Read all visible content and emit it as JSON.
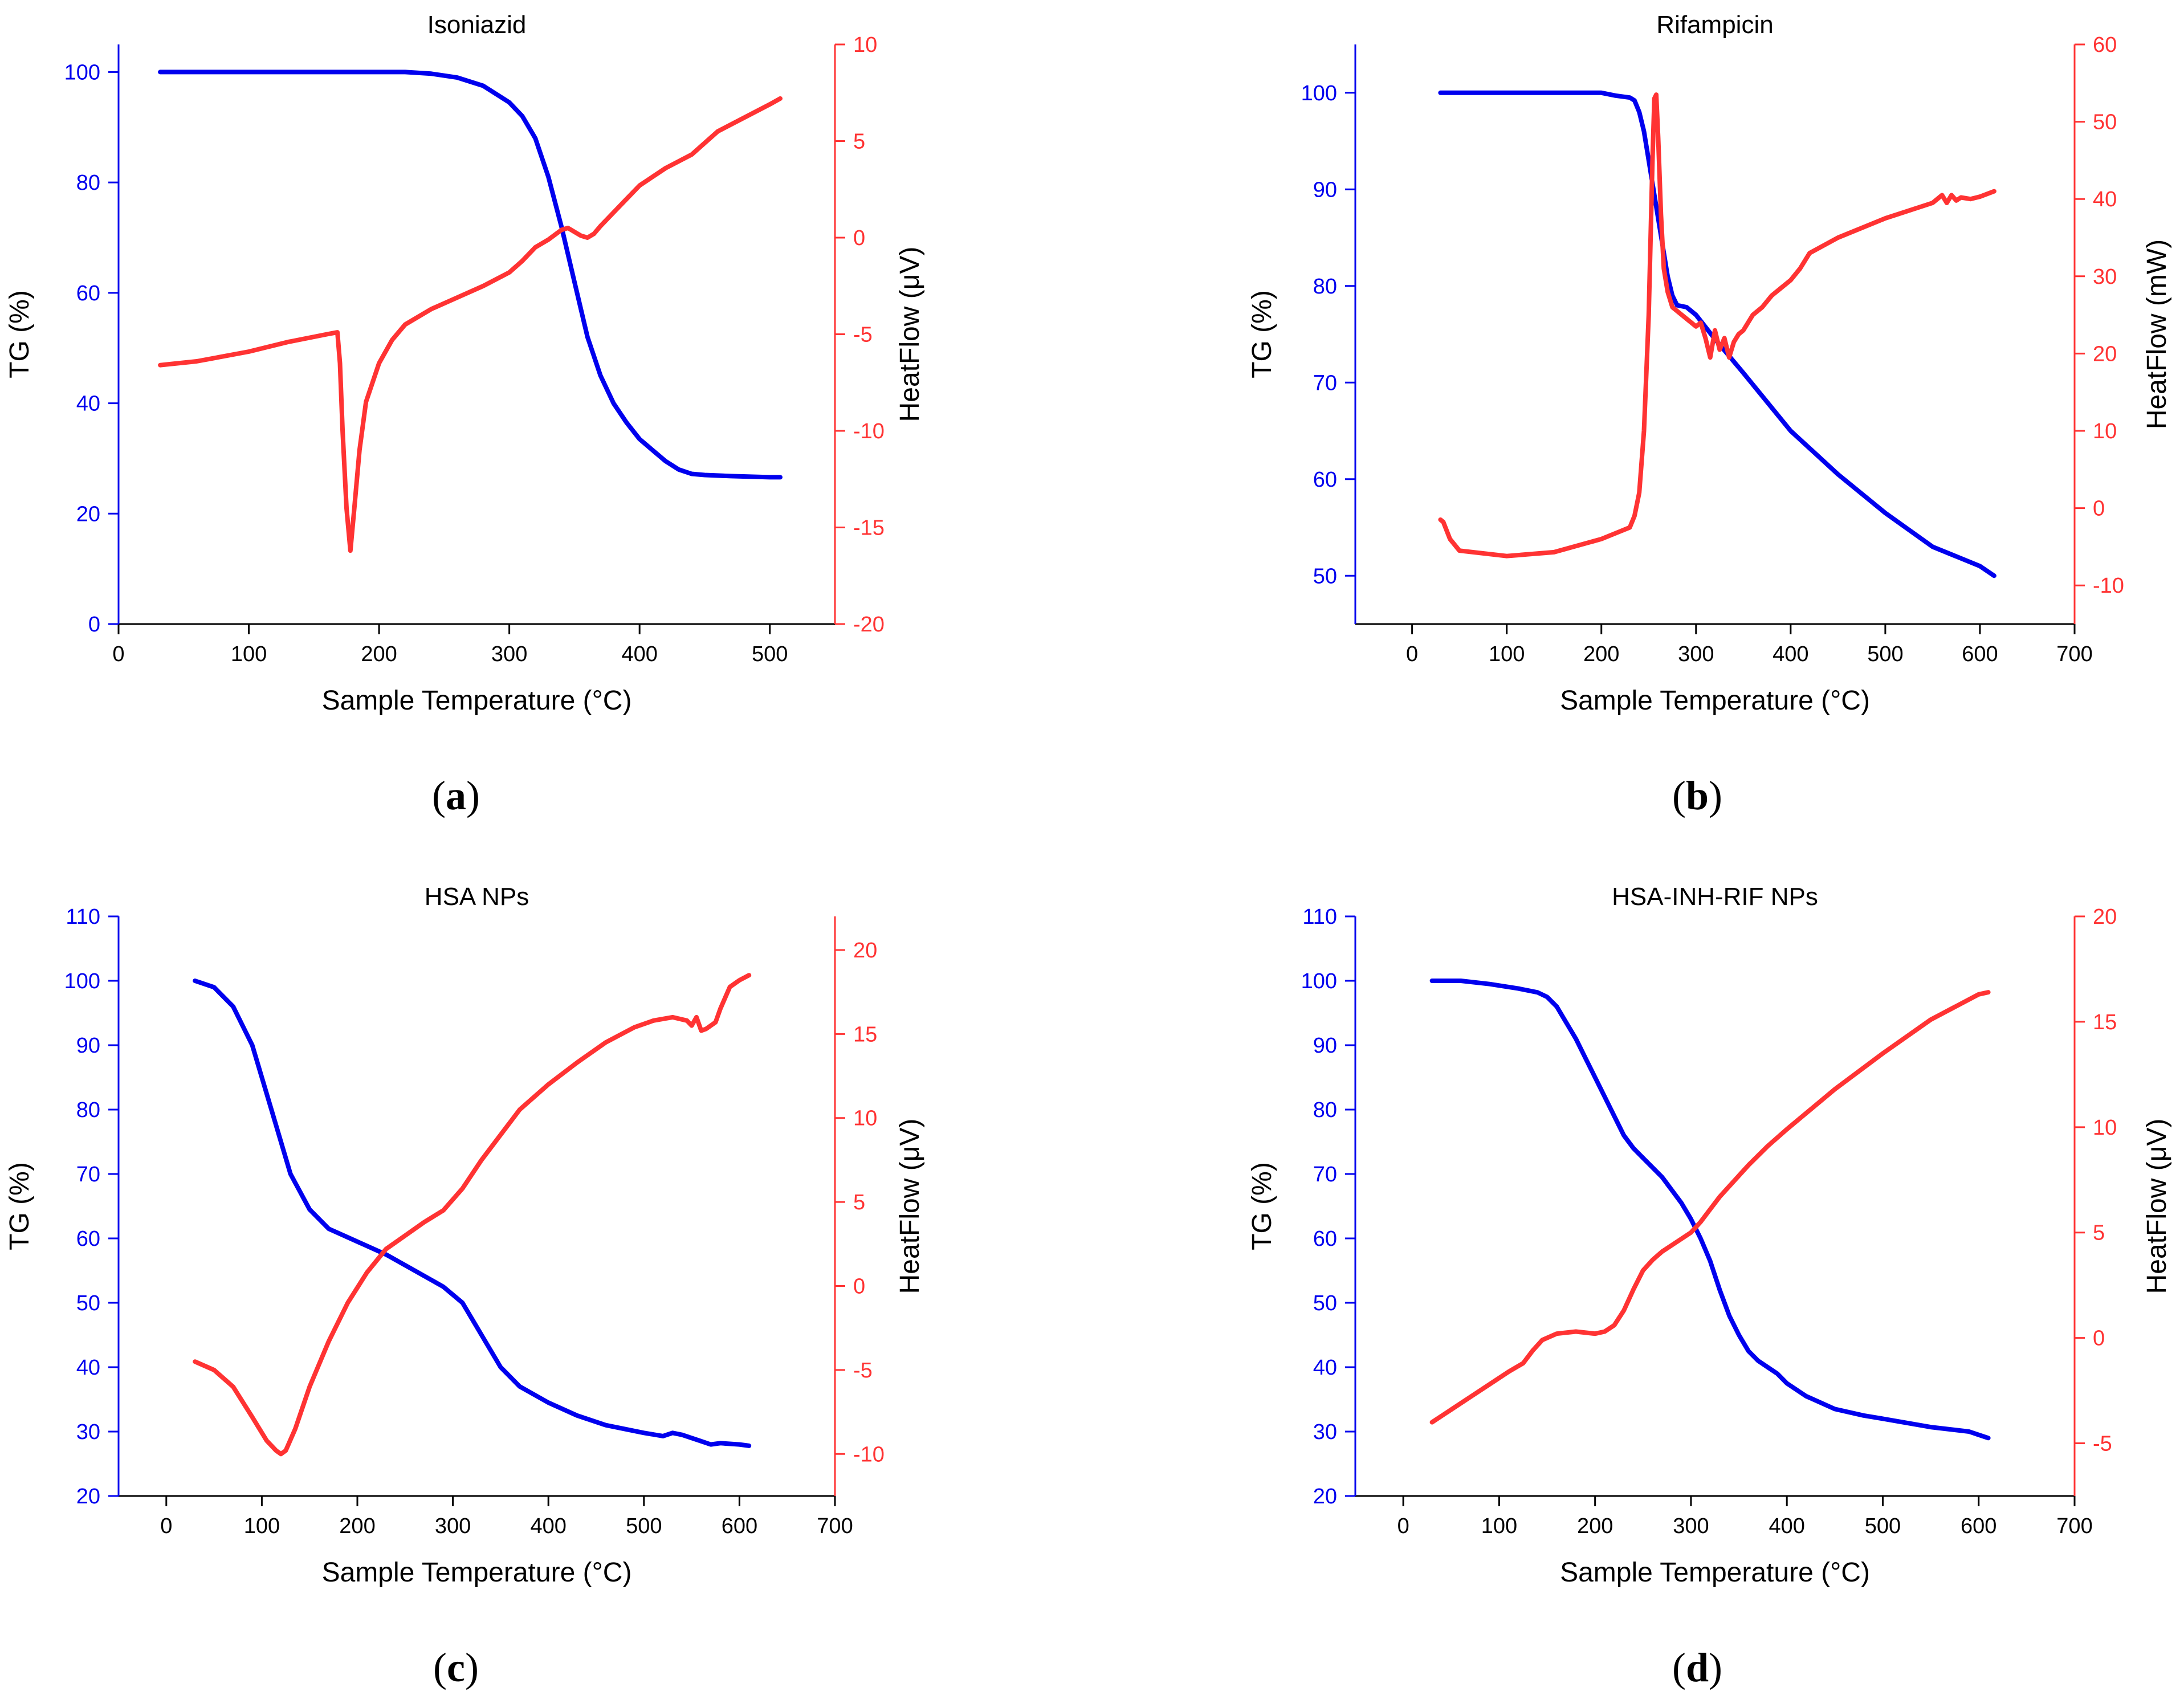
{
  "colors": {
    "tg": "#0000ee",
    "heatflow": "#ff3333",
    "axis": "#000000"
  },
  "chart_data": [
    {
      "type": "line",
      "title": "Isoniazid",
      "panel_label": "a",
      "xlabel": "Sample Temperature (°C)",
      "ylabel": "TG (%)",
      "y2label": "HeatFlow (μV)",
      "xlim": [
        0,
        550
      ],
      "xticks": [
        0,
        100,
        200,
        300,
        400,
        500
      ],
      "ylim": [
        0,
        105
      ],
      "yticks": [
        0,
        20,
        40,
        60,
        80,
        100
      ],
      "y2lim": [
        -20,
        10
      ],
      "y2ticks": [
        -20,
        -15,
        -10,
        -5,
        0,
        5,
        10
      ],
      "series": [
        {
          "name": "TG",
          "axis": "left",
          "color": "#0000ee",
          "x": [
            32,
            100,
            150,
            200,
            220,
            240,
            260,
            280,
            300,
            310,
            320,
            330,
            340,
            350,
            360,
            370,
            380,
            390,
            400,
            410,
            420,
            430,
            440,
            450,
            470,
            500,
            508
          ],
          "y": [
            100,
            100,
            100,
            100,
            100,
            99.7,
            99,
            97.5,
            94.5,
            92,
            88,
            81,
            72,
            62,
            52,
            45,
            40,
            36.5,
            33.5,
            31.5,
            29.5,
            28,
            27.2,
            27,
            26.8,
            26.6,
            26.6
          ]
        },
        {
          "name": "HeatFlow",
          "axis": "right",
          "color": "#ff3333",
          "x": [
            32,
            60,
            100,
            130,
            160,
            168,
            170,
            172,
            175,
            178,
            181,
            185,
            190,
            200,
            210,
            220,
            240,
            260,
            280,
            300,
            310,
            320,
            330,
            340,
            345,
            350,
            355,
            360,
            365,
            370,
            380,
            390,
            400,
            420,
            440,
            460,
            480,
            500,
            508
          ],
          "y": [
            -6.6,
            -6.4,
            -5.9,
            -5.4,
            -5.0,
            -4.9,
            -6.5,
            -10,
            -14,
            -16.2,
            -14,
            -11,
            -8.5,
            -6.5,
            -5.3,
            -4.5,
            -3.7,
            -3.1,
            -2.5,
            -1.8,
            -1.2,
            -0.5,
            -0.1,
            0.4,
            0.5,
            0.3,
            0.1,
            0,
            0.2,
            0.6,
            1.3,
            2.0,
            2.7,
            3.6,
            4.3,
            5.5,
            6.2,
            6.9,
            7.2
          ]
        }
      ]
    },
    {
      "type": "line",
      "title": "Rifampicin",
      "panel_label": "b",
      "xlabel": "Sample Temperature (°C)",
      "ylabel": "TG (%)",
      "y2label": "HeatFlow (mW)",
      "xlim": [
        -60,
        700
      ],
      "xticks": [
        0,
        100,
        200,
        300,
        400,
        500,
        600,
        700
      ],
      "ylim": [
        45,
        105
      ],
      "yticks": [
        50,
        60,
        70,
        80,
        90,
        100
      ],
      "y2lim": [
        -15,
        60
      ],
      "y2ticks": [
        -10,
        0,
        10,
        20,
        30,
        40,
        50,
        60
      ],
      "series": [
        {
          "name": "TG",
          "axis": "left",
          "color": "#0000ee",
          "x": [
            30,
            100,
            150,
            200,
            215,
            230,
            235,
            240,
            245,
            250,
            255,
            260,
            265,
            270,
            275,
            280,
            290,
            300,
            320,
            350,
            400,
            450,
            500,
            550,
            600,
            615
          ],
          "y": [
            100,
            100,
            100,
            100,
            99.7,
            99.5,
            99.2,
            98,
            96,
            93,
            90,
            87,
            84,
            81,
            79,
            78,
            77.8,
            77,
            74.5,
            71,
            65,
            60.5,
            56.5,
            53,
            51,
            50
          ]
        },
        {
          "name": "HeatFlow",
          "axis": "right",
          "color": "#ff3333",
          "x": [
            30,
            33,
            40,
            50,
            100,
            150,
            200,
            220,
            230,
            235,
            240,
            245,
            250,
            254,
            256,
            258,
            260,
            263,
            266,
            270,
            275,
            280,
            290,
            300,
            305,
            310,
            315,
            320,
            325,
            330,
            335,
            340,
            345,
            350,
            360,
            370,
            380,
            390,
            400,
            410,
            420,
            450,
            500,
            550,
            560,
            565,
            570,
            575,
            580,
            590,
            600,
            615
          ],
          "y": [
            -1.5,
            -1.8,
            -4,
            -5.5,
            -6.2,
            -5.7,
            -4,
            -3,
            -2.5,
            -1,
            2,
            10,
            25,
            45,
            53,
            53.5,
            48,
            38,
            31,
            28,
            26,
            25.5,
            24.5,
            23.5,
            24,
            22,
            19.5,
            23,
            20.5,
            22,
            19.5,
            21.5,
            22.5,
            23,
            25,
            26,
            27.5,
            28.5,
            29.5,
            31,
            33,
            35,
            37.5,
            39.5,
            40.5,
            39.5,
            40.5,
            39.8,
            40.2,
            40,
            40.3,
            41
          ]
        }
      ]
    },
    {
      "type": "line",
      "title": "HSA NPs",
      "panel_label": "c",
      "xlabel": "Sample Temperature (°C)",
      "ylabel": "TG (%)",
      "y2label": "HeatFlow (μV)",
      "xlim": [
        -50,
        700
      ],
      "xticks": [
        0,
        100,
        200,
        300,
        400,
        500,
        600,
        700
      ],
      "ylim": [
        20,
        110
      ],
      "yticks": [
        20,
        30,
        40,
        50,
        60,
        70,
        80,
        90,
        100,
        110
      ],
      "y2lim": [
        -12.5,
        22
      ],
      "y2ticks": [
        -10,
        -5,
        0,
        5,
        10,
        15,
        20
      ],
      "series": [
        {
          "name": "TG",
          "axis": "left",
          "color": "#0000ee",
          "x": [
            30,
            50,
            70,
            90,
            110,
            130,
            150,
            170,
            200,
            230,
            260,
            290,
            310,
            330,
            350,
            370,
            400,
            430,
            460,
            500,
            520,
            530,
            540,
            550,
            560,
            570,
            580,
            600,
            610
          ],
          "y": [
            100,
            99,
            96,
            90,
            80,
            70,
            64.5,
            61.5,
            59.5,
            57.5,
            55,
            52.5,
            50,
            45,
            40,
            37,
            34.5,
            32.5,
            31,
            29.8,
            29.3,
            29.8,
            29.5,
            29,
            28.5,
            28,
            28.2,
            28,
            27.8
          ]
        },
        {
          "name": "HeatFlow",
          "axis": "right",
          "color": "#ff3333",
          "x": [
            30,
            50,
            70,
            90,
            105,
            115,
            120,
            125,
            135,
            150,
            170,
            190,
            210,
            230,
            250,
            270,
            290,
            310,
            330,
            350,
            370,
            400,
            430,
            460,
            490,
            510,
            530,
            545,
            550,
            555,
            560,
            565,
            570,
            575,
            580,
            590,
            600,
            610
          ],
          "y": [
            -4.5,
            -5,
            -6,
            -7.8,
            -9.2,
            -9.8,
            -10,
            -9.8,
            -8.5,
            -6,
            -3.3,
            -1,
            0.8,
            2.2,
            3,
            3.8,
            4.5,
            5.8,
            7.5,
            9,
            10.5,
            12,
            13.3,
            14.5,
            15.4,
            15.8,
            16,
            15.8,
            15.5,
            16,
            15.2,
            15.3,
            15.5,
            15.7,
            16.5,
            17.8,
            18.2,
            18.5
          ]
        }
      ]
    },
    {
      "type": "line",
      "title": "HSA-INH-RIF NPs",
      "panel_label": "d",
      "xlabel": "Sample Temperature (°C)",
      "ylabel": "TG (%)",
      "y2label": "HeatFlow (μV)",
      "xlim": [
        -50,
        700
      ],
      "xticks": [
        0,
        100,
        200,
        300,
        400,
        500,
        600,
        700
      ],
      "ylim": [
        20,
        110
      ],
      "yticks": [
        20,
        30,
        40,
        50,
        60,
        70,
        80,
        90,
        100,
        110
      ],
      "y2lim": [
        -7.5,
        20
      ],
      "y2ticks": [
        -5,
        0,
        5,
        10,
        15,
        20
      ],
      "series": [
        {
          "name": "TG",
          "axis": "left",
          "color": "#0000ee",
          "x": [
            30,
            60,
            90,
            120,
            140,
            150,
            160,
            170,
            180,
            190,
            200,
            210,
            220,
            230,
            240,
            250,
            260,
            270,
            280,
            290,
            300,
            310,
            320,
            330,
            340,
            350,
            360,
            370,
            380,
            390,
            400,
            420,
            450,
            480,
            500,
            550,
            590,
            600,
            610
          ],
          "y": [
            100,
            100,
            99.5,
            98.8,
            98.2,
            97.5,
            96,
            93.5,
            91,
            88,
            85,
            82,
            79,
            76,
            74,
            72.5,
            71,
            69.5,
            67.5,
            65.5,
            63,
            60,
            56.5,
            52,
            48,
            45,
            42.5,
            41,
            40,
            39,
            37.5,
            35.5,
            33.5,
            32.5,
            32,
            30.7,
            30,
            29.5,
            29
          ]
        },
        {
          "name": "HeatFlow",
          "axis": "right",
          "color": "#ff3333",
          "x": [
            30,
            50,
            70,
            90,
            110,
            125,
            135,
            145,
            160,
            180,
            200,
            210,
            220,
            230,
            240,
            250,
            260,
            270,
            280,
            290,
            300,
            310,
            320,
            330,
            340,
            360,
            380,
            400,
            450,
            500,
            550,
            600,
            610
          ],
          "y": [
            -4,
            -3.4,
            -2.8,
            -2.2,
            -1.6,
            -1.2,
            -0.6,
            -0.1,
            0.2,
            0.3,
            0.2,
            0.3,
            0.6,
            1.3,
            2.3,
            3.2,
            3.7,
            4.1,
            4.4,
            4.7,
            5,
            5.5,
            6.1,
            6.7,
            7.2,
            8.2,
            9.1,
            9.9,
            11.8,
            13.5,
            15.1,
            16.3,
            16.4
          ]
        }
      ]
    }
  ]
}
